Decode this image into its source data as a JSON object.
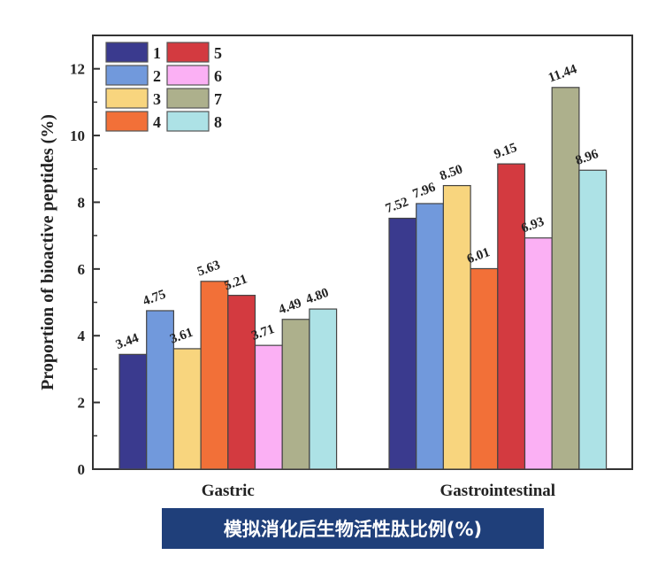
{
  "chart_data": {
    "type": "bar",
    "title": "",
    "xlabel": "",
    "ylabel": "Proportion of bioactive peptides (%)",
    "ylim": [
      0,
      13
    ],
    "yticks": [
      0,
      2,
      4,
      6,
      8,
      10,
      12
    ],
    "categories": [
      "Gastric",
      "Gastrointestinal"
    ],
    "grid": false,
    "legend_position": "top-left",
    "series": [
      {
        "name": "1",
        "color": "#3a3a8e",
        "values": [
          3.44,
          7.52
        ],
        "labels": [
          "3.44",
          "7.52"
        ]
      },
      {
        "name": "2",
        "color": "#7199dc",
        "values": [
          4.75,
          7.96
        ],
        "labels": [
          "4.75",
          "7.96"
        ]
      },
      {
        "name": "3",
        "color": "#f8d57e",
        "values": [
          3.61,
          8.5
        ],
        "labels": [
          "3.61",
          "8.50"
        ]
      },
      {
        "name": "4",
        "color": "#f27038",
        "values": [
          5.63,
          6.01
        ],
        "labels": [
          "5.63",
          "6.01"
        ]
      },
      {
        "name": "5",
        "color": "#d33a40",
        "values": [
          5.21,
          9.15
        ],
        "labels": [
          "5.21",
          "9.15"
        ]
      },
      {
        "name": "6",
        "color": "#fbb0f4",
        "values": [
          3.71,
          6.93
        ],
        "labels": [
          "3.71",
          "6.93"
        ]
      },
      {
        "name": "7",
        "color": "#adb08c",
        "values": [
          4.49,
          11.44
        ],
        "labels": [
          "4.49",
          "11.44"
        ]
      },
      {
        "name": "8",
        "color": "#ade2e6",
        "values": [
          4.8,
          8.96
        ],
        "labels": [
          "4.80",
          "8.96"
        ]
      }
    ]
  },
  "caption": "模拟消化后生物活性肽比例(%)"
}
